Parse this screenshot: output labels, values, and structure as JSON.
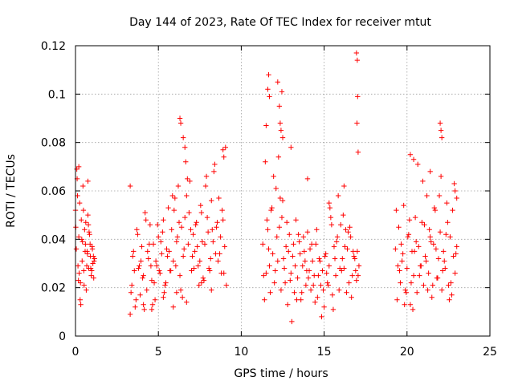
{
  "chart_data": {
    "type": "scatter",
    "title": "Day 144 of 2023, Rate Of TEC Index for receiver mtut",
    "xlabel": "GPS time / hours",
    "ylabel": "ROTI / TECUs",
    "xlim": [
      0,
      25
    ],
    "ylim": [
      0,
      0.12
    ],
    "xticks": [
      0,
      5,
      10,
      15,
      20,
      25
    ],
    "yticks": [
      0,
      0.02,
      0.04,
      0.06,
      0.08,
      0.1,
      0.12
    ],
    "xtick_labels": [
      "0",
      "5",
      "10",
      "15",
      "20",
      "25"
    ],
    "ytick_labels": [
      "0",
      "0.02",
      "0.04",
      "0.06",
      "0.08",
      "0.1",
      "0.12"
    ],
    "grid": true,
    "marker": "+",
    "color": "#ff0000",
    "series": [
      {
        "x": [
          0.0,
          0.05,
          0.1,
          0.15,
          0.2,
          0.25,
          0.3,
          0.35,
          0.4,
          0.45,
          0.5,
          0.55,
          0.6,
          0.65,
          0.7,
          0.75,
          0.8,
          0.85,
          0.9,
          0.95,
          1.0,
          1.05,
          1.1,
          1.15,
          0.02,
          0.12,
          0.22,
          0.32,
          0.42,
          0.52,
          0.62,
          0.72,
          0.82,
          0.92,
          1.02,
          1.12,
          0.08,
          0.18,
          0.28,
          0.38,
          0.48,
          0.58,
          0.68,
          0.78,
          0.88,
          0.98,
          1.08,
          0.2,
          0.75,
          3.3,
          3.4,
          3.5,
          3.6,
          3.7,
          3.8,
          3.9,
          4.0,
          4.1,
          4.2,
          4.3,
          4.4,
          4.5,
          4.6,
          4.7,
          4.8,
          4.9,
          5.0,
          5.1,
          5.2,
          5.3,
          5.4,
          5.5,
          5.6,
          5.7,
          5.8,
          5.9,
          6.0,
          6.1,
          6.2,
          6.3,
          6.4,
          6.5,
          6.6,
          6.7,
          6.8,
          6.9,
          7.0,
          7.1,
          7.2,
          7.3,
          7.4,
          7.5,
          7.6,
          7.7,
          7.8,
          7.9,
          8.0,
          8.1,
          8.2,
          8.3,
          8.4,
          8.5,
          8.6,
          8.7,
          8.8,
          8.9,
          9.0,
          9.1,
          3.35,
          3.55,
          3.75,
          3.95,
          4.15,
          4.35,
          4.55,
          4.75,
          4.95,
          5.15,
          5.35,
          5.55,
          5.75,
          5.95,
          6.15,
          6.35,
          6.55,
          6.75,
          6.95,
          7.15,
          7.35,
          7.55,
          7.75,
          7.95,
          8.15,
          8.35,
          8.55,
          8.75,
          8.95,
          3.45,
          3.65,
          3.85,
          4.05,
          4.25,
          4.45,
          4.65,
          4.85,
          5.05,
          5.25,
          5.45,
          5.65,
          5.85,
          6.05,
          6.25,
          6.45,
          6.65,
          6.85,
          7.05,
          7.25,
          7.45,
          7.65,
          7.85,
          8.05,
          8.25,
          8.45,
          8.65,
          8.85,
          9.05,
          6.3,
          6.35,
          6.5,
          6.6,
          8.9,
          8.95,
          3.3,
          4.1,
          4.6,
          5.3,
          5.9,
          6.1,
          6.7,
          7.6,
          8.2,
          11.3,
          11.4,
          11.5,
          11.6,
          11.7,
          11.8,
          11.9,
          12.0,
          12.1,
          12.2,
          12.3,
          12.4,
          12.5,
          12.6,
          12.7,
          12.8,
          12.9,
          13.0,
          13.1,
          13.2,
          13.3,
          13.4,
          13.5,
          13.6,
          13.7,
          13.8,
          13.9,
          14.0,
          14.1,
          14.2,
          14.3,
          14.4,
          14.5,
          14.6,
          14.7,
          14.8,
          14.9,
          15.0,
          15.1,
          15.2,
          15.3,
          15.4,
          15.5,
          15.6,
          15.7,
          15.8,
          15.9,
          16.0,
          16.1,
          16.2,
          16.3,
          16.4,
          16.5,
          16.6,
          16.7,
          16.8,
          16.9,
          17.0,
          17.1,
          11.35,
          11.55,
          11.75,
          11.95,
          12.15,
          12.35,
          12.55,
          12.75,
          12.95,
          13.15,
          13.35,
          13.55,
          13.75,
          13.95,
          14.15,
          14.35,
          14.55,
          14.75,
          14.95,
          15.15,
          15.35,
          15.55,
          15.75,
          15.95,
          16.15,
          16.35,
          16.55,
          16.75,
          16.95,
          11.45,
          11.65,
          11.85,
          12.05,
          12.25,
          12.45,
          12.65,
          12.85,
          13.05,
          13.25,
          13.45,
          13.65,
          13.85,
          14.05,
          14.25,
          14.45,
          14.65,
          14.85,
          15.05,
          15.25,
          15.45,
          15.65,
          15.85,
          16.05,
          16.25,
          16.45,
          16.65,
          16.85,
          17.05,
          11.6,
          11.65,
          11.7,
          12.2,
          12.3,
          12.35,
          12.4,
          12.45,
          12.5,
          16.95,
          17.0,
          17.02,
          16.98,
          17.05,
          11.5,
          13.0,
          14.0,
          15.3,
          16.2,
          19.3,
          19.4,
          19.5,
          19.6,
          19.7,
          19.8,
          19.9,
          20.0,
          20.1,
          20.2,
          20.3,
          20.4,
          20.5,
          20.6,
          20.7,
          20.8,
          20.9,
          21.0,
          21.1,
          21.2,
          21.3,
          21.4,
          21.5,
          21.6,
          21.7,
          21.8,
          21.9,
          22.0,
          22.1,
          22.2,
          22.3,
          22.4,
          22.5,
          22.6,
          22.7,
          22.8,
          22.9,
          23.0,
          19.35,
          19.55,
          19.75,
          19.95,
          20.15,
          20.35,
          20.55,
          20.75,
          20.95,
          21.15,
          21.35,
          21.55,
          21.75,
          21.95,
          22.15,
          22.35,
          22.55,
          22.75,
          22.95,
          19.45,
          19.65,
          19.85,
          20.05,
          20.25,
          20.45,
          20.65,
          20.85,
          21.05,
          21.25,
          21.45,
          21.65,
          21.85,
          22.05,
          22.25,
          22.45,
          22.65,
          22.85,
          22.0,
          22.05,
          22.1,
          20.2,
          20.4,
          21.4,
          22.9,
          23.0
        ],
        "y": [
          0.052,
          0.036,
          0.065,
          0.029,
          0.041,
          0.055,
          0.022,
          0.048,
          0.031,
          0.062,
          0.027,
          0.044,
          0.038,
          0.019,
          0.035,
          0.05,
          0.028,
          0.042,
          0.033,
          0.025,
          0.037,
          0.03,
          0.024,
          0.032,
          0.045,
          0.058,
          0.026,
          0.013,
          0.039,
          0.021,
          0.047,
          0.034,
          0.043,
          0.028,
          0.036,
          0.031,
          0.069,
          0.023,
          0.015,
          0.04,
          0.052,
          0.035,
          0.029,
          0.046,
          0.038,
          0.027,
          0.033,
          0.07,
          0.064,
          0.062,
          0.021,
          0.035,
          0.012,
          0.044,
          0.028,
          0.017,
          0.037,
          0.025,
          0.051,
          0.019,
          0.032,
          0.046,
          0.023,
          0.038,
          0.015,
          0.029,
          0.041,
          0.026,
          0.034,
          0.048,
          0.021,
          0.036,
          0.053,
          0.027,
          0.044,
          0.031,
          0.057,
          0.039,
          0.062,
          0.025,
          0.045,
          0.033,
          0.049,
          0.058,
          0.038,
          0.064,
          0.027,
          0.042,
          0.035,
          0.047,
          0.029,
          0.031,
          0.051,
          0.024,
          0.038,
          0.066,
          0.043,
          0.027,
          0.056,
          0.039,
          0.071,
          0.045,
          0.031,
          0.034,
          0.026,
          0.048,
          0.037,
          0.021,
          0.018,
          0.027,
          0.042,
          0.031,
          0.011,
          0.035,
          0.029,
          0.022,
          0.046,
          0.039,
          0.018,
          0.033,
          0.027,
          0.052,
          0.041,
          0.019,
          0.036,
          0.065,
          0.044,
          0.028,
          0.037,
          0.054,
          0.023,
          0.049,
          0.032,
          0.068,
          0.047,
          0.041,
          0.026,
          0.033,
          0.015,
          0.029,
          0.024,
          0.048,
          0.038,
          0.013,
          0.031,
          0.027,
          0.043,
          0.022,
          0.035,
          0.058,
          0.029,
          0.047,
          0.016,
          0.072,
          0.051,
          0.033,
          0.046,
          0.021,
          0.039,
          0.062,
          0.028,
          0.044,
          0.034,
          0.057,
          0.052,
          0.078,
          0.09,
          0.088,
          0.082,
          0.078,
          0.077,
          0.074,
          0.009,
          0.013,
          0.011,
          0.016,
          0.012,
          0.018,
          0.014,
          0.022,
          0.019,
          0.038,
          0.015,
          0.026,
          0.044,
          0.029,
          0.052,
          0.034,
          0.022,
          0.061,
          0.031,
          0.045,
          0.019,
          0.056,
          0.028,
          0.037,
          0.013,
          0.042,
          0.026,
          0.033,
          0.018,
          0.048,
          0.024,
          0.039,
          0.015,
          0.029,
          0.035,
          0.021,
          0.043,
          0.027,
          0.019,
          0.031,
          0.025,
          0.038,
          0.016,
          0.032,
          0.021,
          0.027,
          0.012,
          0.034,
          0.022,
          0.029,
          0.049,
          0.017,
          0.037,
          0.025,
          0.041,
          0.019,
          0.046,
          0.032,
          0.028,
          0.044,
          0.036,
          0.022,
          0.041,
          0.025,
          0.033,
          0.027,
          0.035,
          0.029,
          0.025,
          0.048,
          0.018,
          0.066,
          0.041,
          0.057,
          0.032,
          0.047,
          0.023,
          0.038,
          0.015,
          0.034,
          0.041,
          0.027,
          0.036,
          0.021,
          0.044,
          0.031,
          0.019,
          0.026,
          0.053,
          0.011,
          0.039,
          0.028,
          0.05,
          0.018,
          0.045,
          0.035,
          0.023,
          0.072,
          0.036,
          0.053,
          0.027,
          0.074,
          0.049,
          0.022,
          0.035,
          0.006,
          0.029,
          0.042,
          0.018,
          0.031,
          0.024,
          0.038,
          0.014,
          0.025,
          0.008,
          0.033,
          0.021,
          0.046,
          0.032,
          0.058,
          0.027,
          0.037,
          0.043,
          0.016,
          0.032,
          0.025,
          0.102,
          0.108,
          0.099,
          0.105,
          0.095,
          0.088,
          0.085,
          0.101,
          0.082,
          0.117,
          0.114,
          0.099,
          0.088,
          0.076,
          0.087,
          0.078,
          0.065,
          0.055,
          0.062,
          0.036,
          0.015,
          0.045,
          0.022,
          0.031,
          0.054,
          0.019,
          0.028,
          0.042,
          0.013,
          0.035,
          0.025,
          0.049,
          0.018,
          0.037,
          0.029,
          0.047,
          0.021,
          0.033,
          0.058,
          0.026,
          0.041,
          0.016,
          0.038,
          0.052,
          0.024,
          0.032,
          0.043,
          0.019,
          0.035,
          0.028,
          0.055,
          0.021,
          0.041,
          0.017,
          0.033,
          0.026,
          0.037,
          0.052,
          0.027,
          0.034,
          0.018,
          0.048,
          0.011,
          0.039,
          0.025,
          0.064,
          0.031,
          0.044,
          0.021,
          0.036,
          0.058,
          0.027,
          0.042,
          0.015,
          0.052,
          0.034,
          0.029,
          0.038,
          0.013,
          0.041,
          0.022,
          0.035,
          0.071,
          0.029,
          0.046,
          0.019,
          0.039,
          0.053,
          0.024,
          0.066,
          0.031,
          0.047,
          0.022,
          0.063,
          0.088,
          0.085,
          0.082,
          0.075,
          0.073,
          0.068,
          0.06,
          0.057
        ]
      }
    ]
  }
}
